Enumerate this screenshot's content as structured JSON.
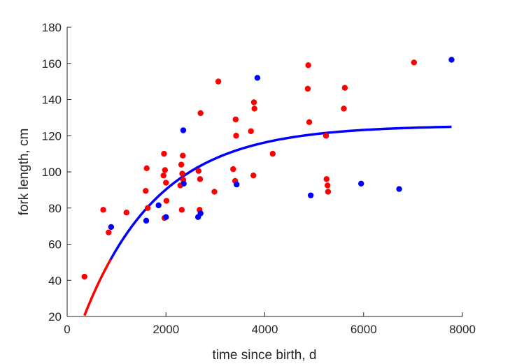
{
  "chart_data": {
    "type": "scatter",
    "title": "",
    "xlabel": "time since birth, d",
    "ylabel": "fork length, cm",
    "xlim": [
      0,
      8000
    ],
    "ylim": [
      20,
      180
    ],
    "xticks": [
      0,
      2000,
      4000,
      6000,
      8000
    ],
    "yticks": [
      20,
      40,
      60,
      80,
      100,
      120,
      140,
      160,
      180
    ],
    "grid": false,
    "legend": "none",
    "series": [
      {
        "color": "#ff0000",
        "points": [
          [
            350,
            42
          ],
          [
            730,
            79
          ],
          [
            840,
            66.5
          ],
          [
            1200,
            77.5
          ],
          [
            1590,
            89.5
          ],
          [
            1610,
            102
          ],
          [
            1630,
            80
          ],
          [
            1950,
            98
          ],
          [
            1960,
            110
          ],
          [
            1970,
            74.5
          ],
          [
            1980,
            101
          ],
          [
            2000,
            94
          ],
          [
            2010,
            84
          ],
          [
            2290,
            92.5
          ],
          [
            2310,
            104
          ],
          [
            2320,
            79
          ],
          [
            2330,
            99
          ],
          [
            2340,
            109
          ],
          [
            2350,
            95.5
          ],
          [
            2660,
            100.5
          ],
          [
            2680,
            79
          ],
          [
            2690,
            96
          ],
          [
            2700,
            132.5
          ],
          [
            2980,
            89
          ],
          [
            3060,
            150
          ],
          [
            3360,
            101.5
          ],
          [
            3400,
            95
          ],
          [
            3410,
            129
          ],
          [
            3420,
            120
          ],
          [
            3720,
            122.5
          ],
          [
            3770,
            98
          ],
          [
            3780,
            138.5
          ],
          [
            3790,
            135
          ],
          [
            4160,
            110
          ],
          [
            4870,
            146
          ],
          [
            4880,
            159
          ],
          [
            4900,
            127.5
          ],
          [
            5240,
            120
          ],
          [
            5250,
            96
          ],
          [
            5270,
            92.5
          ],
          [
            5280,
            89
          ],
          [
            5600,
            135
          ],
          [
            5620,
            146.5
          ],
          [
            7020,
            160.5
          ]
        ]
      },
      {
        "color": "#0000ff",
        "points": [
          [
            890,
            69.5
          ],
          [
            1600,
            73
          ],
          [
            1850,
            81.5
          ],
          [
            2000,
            75
          ],
          [
            2350,
            123
          ],
          [
            2360,
            93.5
          ],
          [
            2650,
            75
          ],
          [
            2700,
            77
          ],
          [
            3430,
            93
          ],
          [
            3850,
            152
          ],
          [
            4930,
            87
          ],
          [
            5950,
            93.5
          ],
          [
            6720,
            90.5
          ],
          [
            7780,
            162
          ]
        ]
      }
    ],
    "fit_curve": {
      "type": "von-bertalanffy",
      "Linf": 125.7,
      "k": 0.00066,
      "t0": 80,
      "x_range": [
        350,
        7780
      ],
      "split_x": 880,
      "color_before_split": "#ff0000",
      "color_after_split": "#0000ff"
    }
  }
}
